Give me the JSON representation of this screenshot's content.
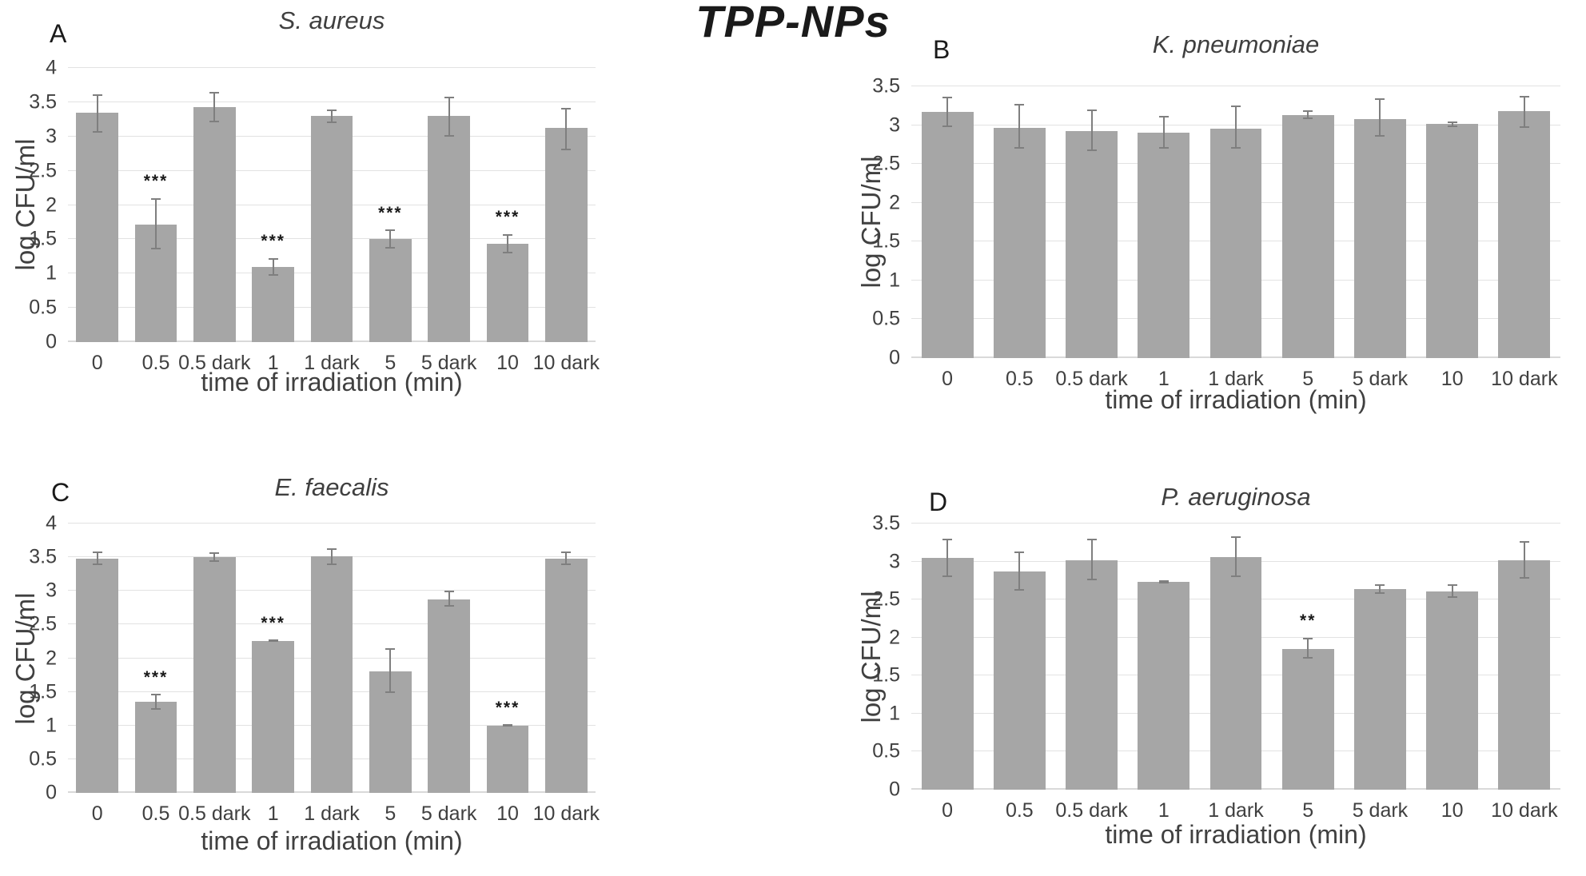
{
  "figure_title": "TPP-NPs",
  "colors": {
    "bar": "#a6a6a6",
    "error_bar": "#7f7f7f",
    "gridline": "#e2e2e2",
    "text": "#404040",
    "title_text": "#1a1a1a"
  },
  "chart_data": [
    {
      "panel_letter": "A",
      "title": "S. aureus",
      "type": "bar",
      "xlabel": "time of irradiation (min)",
      "ylabel": "log CFU/ml",
      "ylim": [
        0,
        4
      ],
      "ytick_step": 0.5,
      "grid": true,
      "categories": [
        "0",
        "0.5",
        "0.5 dark",
        "1",
        "1 dark",
        "5",
        "5 dark",
        "10",
        "10 dark"
      ],
      "values": [
        3.35,
        1.72,
        3.43,
        1.1,
        3.3,
        1.5,
        3.3,
        1.44,
        3.12
      ],
      "error_up": [
        0.27,
        0.38,
        0.22,
        0.13,
        0.09,
        0.14,
        0.28,
        0.14,
        0.3
      ],
      "error_down": [
        0.3,
        0.37,
        0.22,
        0.13,
        0.1,
        0.14,
        0.3,
        0.14,
        0.32
      ],
      "significance": [
        "",
        "***",
        "",
        "***",
        "",
        "***",
        "",
        "***",
        ""
      ]
    },
    {
      "panel_letter": "B",
      "title": "K. pneumoniae",
      "type": "bar",
      "xlabel": "time of irradiation (min)",
      "ylabel": "log CFU/ml",
      "ylim": [
        0,
        3.5
      ],
      "ytick_step": 0.5,
      "grid": true,
      "categories": [
        "0",
        "0.5",
        "0.5 dark",
        "1",
        "1 dark",
        "5",
        "5 dark",
        "10",
        "10 dark"
      ],
      "values": [
        3.17,
        2.97,
        2.92,
        2.9,
        2.95,
        3.13,
        3.08,
        3.02,
        3.18
      ],
      "error_up": [
        0.2,
        0.3,
        0.28,
        0.22,
        0.3,
        0.06,
        0.27,
        0.03,
        0.2
      ],
      "error_down": [
        0.19,
        0.27,
        0.25,
        0.2,
        0.25,
        0.05,
        0.23,
        0.04,
        0.21
      ],
      "significance": [
        "",
        "",
        "",
        "",
        "",
        "",
        "",
        "",
        ""
      ]
    },
    {
      "panel_letter": "C",
      "title": "E. faecalis",
      "type": "bar",
      "xlabel": "time of irradiation (min)",
      "ylabel": "log CFU/ml",
      "ylim": [
        0,
        4
      ],
      "ytick_step": 0.5,
      "grid": true,
      "categories": [
        "0",
        "0.5",
        "0.5 dark",
        "1",
        "1 dark",
        "5",
        "5 dark",
        "10",
        "10 dark"
      ],
      "values": [
        3.48,
        1.35,
        3.5,
        2.26,
        3.51,
        1.8,
        2.87,
        1.0,
        3.48
      ],
      "error_up": [
        0.1,
        0.12,
        0.07,
        0.02,
        0.12,
        0.35,
        0.13,
        0.02,
        0.1
      ],
      "error_down": [
        0.1,
        0.11,
        0.07,
        0.02,
        0.13,
        0.32,
        0.11,
        0.01,
        0.1
      ],
      "significance": [
        "",
        "***",
        "",
        "***",
        "",
        "",
        "",
        "***",
        ""
      ]
    },
    {
      "panel_letter": "D",
      "title": "P. aeruginosa",
      "type": "bar",
      "xlabel": "time of irradiation (min)",
      "ylabel": "log CFU/ml",
      "ylim": [
        0,
        3.5
      ],
      "ytick_step": 0.5,
      "grid": true,
      "categories": [
        "0",
        "0.5",
        "0.5 dark",
        "1",
        "1 dark",
        "5",
        "5 dark",
        "10",
        "10 dark"
      ],
      "values": [
        3.05,
        2.87,
        3.02,
        2.73,
        3.06,
        1.85,
        2.64,
        2.61,
        3.02
      ],
      "error_up": [
        0.25,
        0.26,
        0.28,
        0.02,
        0.27,
        0.15,
        0.06,
        0.09,
        0.25
      ],
      "error_down": [
        0.25,
        0.25,
        0.27,
        0.02,
        0.26,
        0.13,
        0.06,
        0.09,
        0.24
      ],
      "significance": [
        "",
        "",
        "",
        "",
        "",
        "**",
        "",
        "",
        ""
      ]
    }
  ]
}
